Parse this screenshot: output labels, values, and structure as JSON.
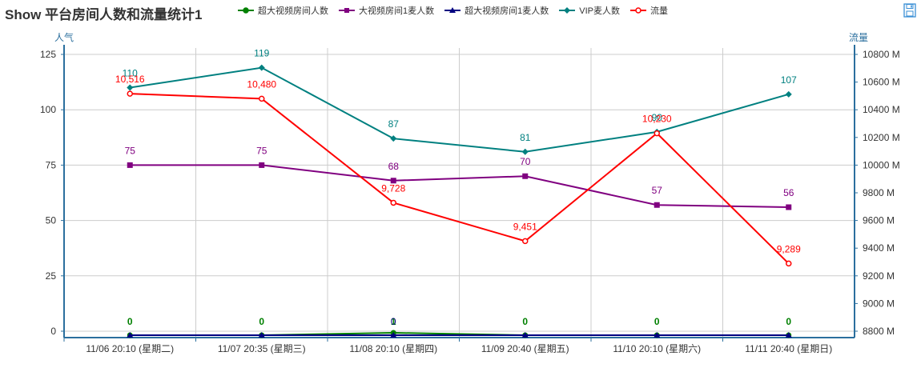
{
  "title": "Show 平台房间人数和流量统计1",
  "colors": {
    "series_super_total": "#008000",
    "series_big_couple": "#800080",
    "series_super_couple": "#000080",
    "series_vip": "#008080",
    "series_traffic": "#ff0000",
    "axis_left": "#2b6f9e",
    "axis_right": "#2b6f9e",
    "grid": "#cccccc"
  },
  "toolbar": {
    "save_icon": "floppy-disk-icon"
  },
  "chart_data": {
    "type": "line",
    "title": "Show 平台房间人数和流量统计1",
    "categories": [
      "11/06 20:10 (星期二)",
      "11/07 20:35 (星期三)",
      "11/08 20:10 (星期四)",
      "11/09 20:40 (星期五)",
      "11/10 20:10 (星期六)",
      "11/11 20:40 (星期日)"
    ],
    "y_left": {
      "label": "人气",
      "ticks": [
        0,
        25,
        50,
        75,
        100,
        125
      ]
    },
    "y_right": {
      "label": "流量",
      "ticks": [
        "8800 M",
        "9000 M",
        "9200 M",
        "9400 M",
        "9600 M",
        "9800 M",
        "10000 M",
        "10200 M",
        "10400 M",
        "10600 M",
        "10800 M"
      ]
    },
    "series": [
      {
        "name": "超大视频房间人数",
        "axis": "left",
        "marker": "circle-filled",
        "values": [
          0,
          0,
          1,
          0,
          0,
          0
        ],
        "labels": [
          "0",
          "0",
          "1",
          "0",
          "0",
          "0"
        ]
      },
      {
        "name": "大视频房间1麦人数",
        "axis": "left",
        "marker": "square",
        "values": [
          75,
          75,
          68,
          70,
          57,
          56
        ],
        "labels": [
          "75",
          "75",
          "68",
          "70",
          "57",
          "56"
        ]
      },
      {
        "name": "超大视频房间1麦人数",
        "axis": "left",
        "marker": "triangle",
        "values": [
          0,
          0,
          0,
          0,
          0,
          0
        ],
        "labels": [
          "",
          "",
          "0",
          "",
          "",
          ""
        ]
      },
      {
        "name": "VIP麦人数",
        "axis": "left",
        "marker": "diamond",
        "values": [
          110,
          119,
          87,
          81,
          90,
          107
        ],
        "labels": [
          "110",
          "119",
          "87",
          "81",
          "90",
          "107"
        ]
      },
      {
        "name": "流量",
        "axis": "right",
        "marker": "circle-open",
        "values": [
          10516,
          10480,
          9728,
          9451,
          10230,
          9289
        ],
        "labels": [
          "10,516",
          "10,480",
          "9,728",
          "9,451",
          "10,230",
          "9,289"
        ]
      }
    ],
    "grid": true,
    "legend_position": "top"
  }
}
